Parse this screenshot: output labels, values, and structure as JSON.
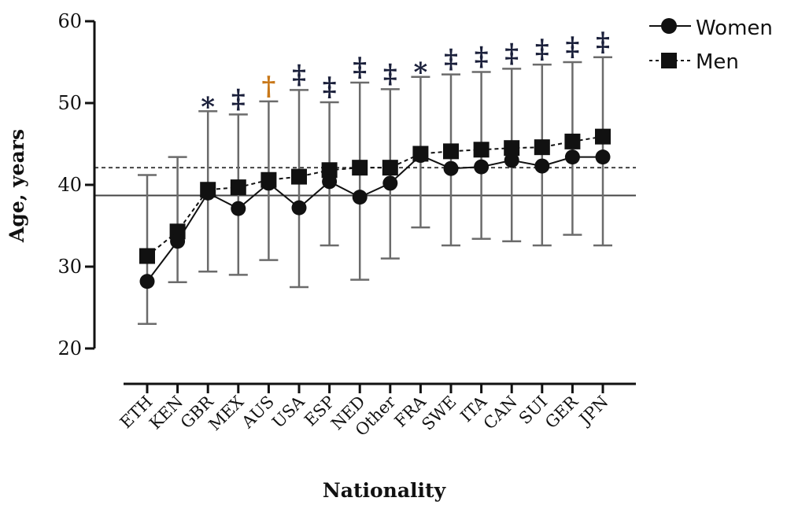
{
  "chart_data": {
    "type": "line",
    "xlabel": "Nationality",
    "ylabel": "Age, years",
    "ylim": [
      20,
      60
    ],
    "yticks": [
      20,
      30,
      40,
      50,
      60
    ],
    "categories": [
      "ETH",
      "KEN",
      "GBR",
      "MEX",
      "AUS",
      "USA",
      "ESP",
      "NED",
      "Other",
      "FRA",
      "SWE",
      "ITA",
      "CAN",
      "SUI",
      "GER",
      "JPN"
    ],
    "series": [
      {
        "name": "Women",
        "marker": "circle",
        "line": "solid",
        "values": [
          28.2,
          33.1,
          39.0,
          37.1,
          40.2,
          37.2,
          40.4,
          38.5,
          40.2,
          43.6,
          42.0,
          42.2,
          43.0,
          42.3,
          43.4,
          43.4
        ],
        "error_low": [
          23.0,
          28.1,
          29.4,
          29.0,
          30.8,
          27.5,
          32.6,
          28.4,
          31.0,
          34.8,
          32.6,
          33.4,
          33.1,
          32.6,
          33.9,
          32.6
        ],
        "error_high": [
          41.2,
          43.4,
          49.0,
          48.6,
          50.2,
          51.6,
          50.1,
          52.5,
          51.7,
          53.2,
          53.5,
          53.8,
          54.2,
          54.7,
          55.0,
          55.6
        ]
      },
      {
        "name": "Men",
        "marker": "square",
        "line": "dashed",
        "values": [
          31.3,
          34.3,
          39.4,
          39.7,
          40.6,
          41.0,
          41.8,
          42.1,
          42.1,
          43.8,
          44.1,
          44.3,
          44.5,
          44.6,
          45.3,
          45.9
        ]
      }
    ],
    "reference_lines": [
      {
        "series": "Women",
        "value": 38.7,
        "style": "solid"
      },
      {
        "series": "Men",
        "value": 42.1,
        "style": "dashed"
      }
    ],
    "annotations": [
      "",
      "",
      "*",
      "‡",
      "†",
      "‡",
      "‡",
      "‡",
      "‡",
      "*",
      "‡",
      "‡",
      "‡",
      "‡",
      "‡",
      "‡"
    ],
    "legend_position": "top-right",
    "colors": {
      "axis": "#111111",
      "marker": "#111111",
      "errorbar": "#6b6b6b",
      "annotation_black": "#1a1f3a",
      "annotation_gold": "#c8781a"
    }
  }
}
